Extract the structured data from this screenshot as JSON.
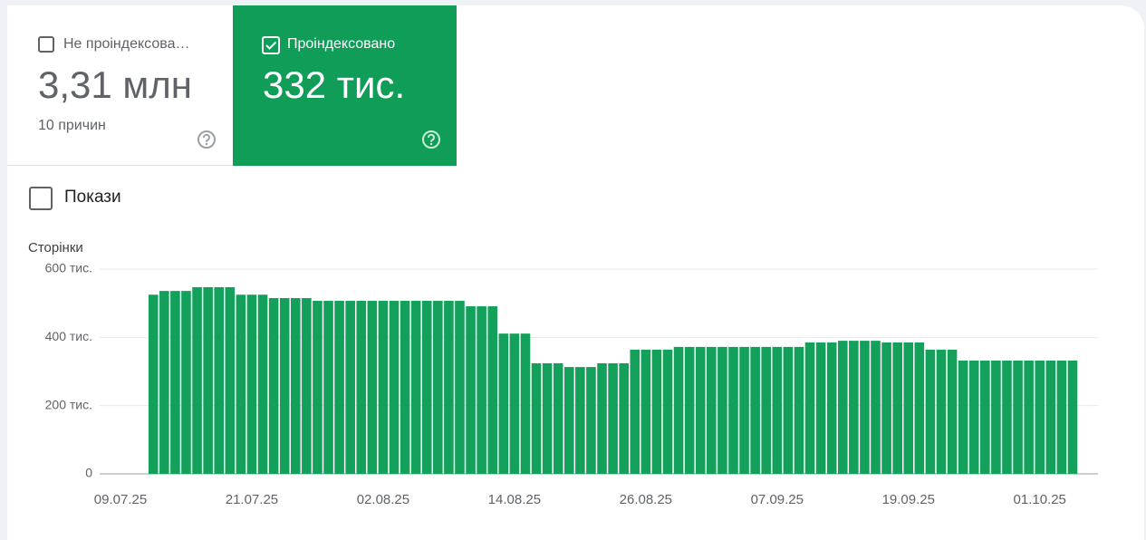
{
  "cards": [
    {
      "label": "Не проіндексова…",
      "value": "3,31 млн",
      "subtitle": "10 причин"
    },
    {
      "label": "Проіндексовано",
      "value": "332 тис."
    }
  ],
  "metric_toggle": {
    "label": "Покази"
  },
  "chart_data": {
    "type": "bar",
    "y_label": "Сторінки",
    "color": "#12a05a",
    "grid": true,
    "categories": [
      "09.07.25",
      null,
      null,
      null,
      null,
      null,
      null,
      null,
      null,
      null,
      null,
      null,
      "21.07.25",
      null,
      null,
      null,
      null,
      null,
      null,
      null,
      null,
      null,
      null,
      null,
      "02.08.25",
      null,
      null,
      null,
      null,
      null,
      null,
      null,
      null,
      null,
      null,
      null,
      "14.08.25",
      null,
      null,
      null,
      null,
      null,
      null,
      null,
      null,
      null,
      null,
      null,
      "26.08.25",
      null,
      null,
      null,
      null,
      null,
      null,
      null,
      null,
      null,
      null,
      null,
      "07.09.25",
      null,
      null,
      null,
      null,
      null,
      null,
      null,
      null,
      null,
      null,
      null,
      "19.09.25",
      null,
      null,
      null,
      null,
      null,
      null,
      null,
      null,
      null,
      null,
      null,
      "01.10.25",
      null,
      null,
      null
    ],
    "values": [
      null,
      null,
      null,
      525000,
      536000,
      536000,
      536000,
      547000,
      547000,
      547000,
      547000,
      525000,
      525000,
      525000,
      515000,
      515000,
      515000,
      515000,
      507000,
      507000,
      507000,
      507000,
      507000,
      507000,
      507000,
      507000,
      507000,
      507000,
      507000,
      507000,
      507000,
      507000,
      491000,
      491000,
      491000,
      411000,
      411000,
      411000,
      324000,
      324000,
      324000,
      313000,
      313000,
      313000,
      324000,
      324000,
      324000,
      364000,
      364000,
      364000,
      364000,
      372000,
      372000,
      372000,
      372000,
      372000,
      372000,
      372000,
      372000,
      372000,
      372000,
      372000,
      372000,
      385000,
      385000,
      385000,
      390000,
      390000,
      390000,
      390000,
      385000,
      385000,
      385000,
      385000,
      364000,
      364000,
      364000,
      332000,
      332000,
      332000,
      332000,
      332000,
      332000,
      332000,
      332000,
      332000,
      332000,
      332000
    ],
    "ylim": [
      0,
      600000
    ],
    "yticks": [
      0,
      {
        "value": 200000,
        "label": "200 тис."
      },
      {
        "value": 400000,
        "label": "400 тис."
      },
      {
        "value": 600000,
        "label": "600 тис."
      }
    ]
  }
}
